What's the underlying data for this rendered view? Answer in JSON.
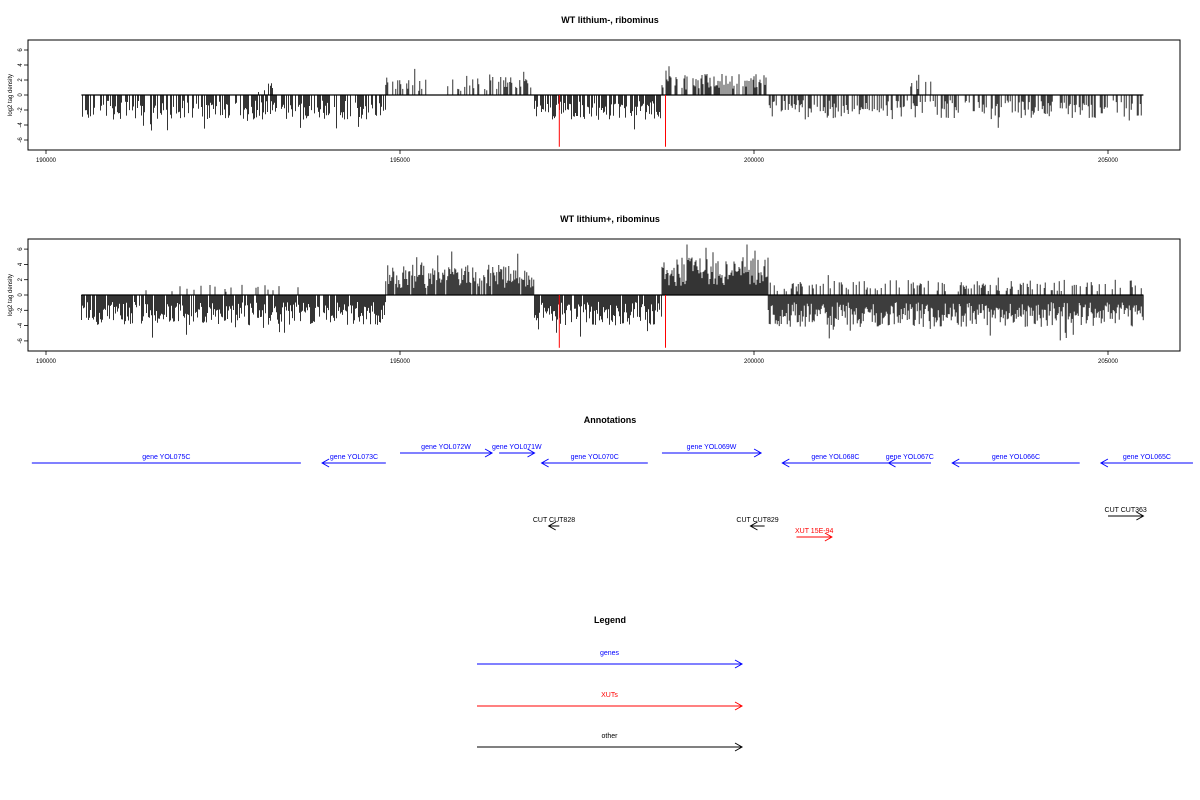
{
  "chart_data": [
    {
      "type": "bar",
      "title": "WT lithium-, ribominus",
      "ylabel": "log2 tag density",
      "xlabel": "",
      "xlim": [
        190000,
        206200
      ],
      "ylim": [
        -7,
        7
      ],
      "x_ticks": [
        190000,
        195000,
        200000,
        205000
      ],
      "y_ticks": [
        -6,
        -4,
        -2,
        0,
        2,
        4,
        6
      ],
      "grid": false,
      "bar_color": "#000000",
      "highlight_color": "#ff0000",
      "data_range": [
        190500,
        205500
      ],
      "segments": [
        {
          "start": 190500,
          "end": 194800,
          "sign": "neg",
          "mag": 3.0,
          "density": 0.6
        },
        {
          "start": 193000,
          "end": 193200,
          "sign": "pos",
          "mag": 1.5,
          "density": 0.3
        },
        {
          "start": 194800,
          "end": 196900,
          "sign": "pos",
          "mag": 2.2,
          "density": 0.35
        },
        {
          "start": 196900,
          "end": 198700,
          "sign": "neg",
          "mag": 3.0,
          "density": 0.75
        },
        {
          "start": 198700,
          "end": 200200,
          "sign": "pos",
          "mag": 2.6,
          "density": 0.6
        },
        {
          "start": 200200,
          "end": 205500,
          "sign": "neg",
          "mag": 2.8,
          "density": 0.55
        },
        {
          "start": 202200,
          "end": 202500,
          "sign": "pos",
          "mag": 1.8,
          "density": 0.3
        }
      ],
      "highlights": [
        {
          "x": 197250,
          "y": -6.9
        },
        {
          "x": 198750,
          "y": -6.9
        }
      ]
    },
    {
      "type": "bar",
      "title": "WT lithium+, ribominus",
      "ylabel": "log2 tag density",
      "xlabel": "",
      "xlim": [
        190000,
        206200
      ],
      "ylim": [
        -7,
        7
      ],
      "x_ticks": [
        190000,
        195000,
        200000,
        205000
      ],
      "y_ticks": [
        -6,
        -4,
        -2,
        0,
        2,
        4,
        6
      ],
      "grid": false,
      "bar_color": "#000000",
      "highlight_color": "#ff0000",
      "data_range": [
        190500,
        205500
      ],
      "segments": [
        {
          "start": 190500,
          "end": 194800,
          "sign": "neg",
          "mag": 3.6,
          "density": 0.9
        },
        {
          "start": 191200,
          "end": 193600,
          "sign": "pos",
          "mag": 1.2,
          "density": 0.1
        },
        {
          "start": 194800,
          "end": 196900,
          "sign": "pos",
          "mag": 3.6,
          "density": 0.9
        },
        {
          "start": 196900,
          "end": 198700,
          "sign": "neg",
          "mag": 3.6,
          "density": 0.9
        },
        {
          "start": 198700,
          "end": 200200,
          "sign": "pos",
          "mag": 4.6,
          "density": 1.0
        },
        {
          "start": 200200,
          "end": 205500,
          "sign": "neg",
          "mag": 3.8,
          "density": 1.0
        },
        {
          "start": 200200,
          "end": 205500,
          "sign": "pos",
          "mag": 1.8,
          "density": 0.35
        }
      ],
      "highlights": [
        {
          "x": 197250,
          "y": -6.9
        },
        {
          "x": 198750,
          "y": -6.9
        }
      ]
    }
  ],
  "annotations": {
    "title": "Annotations",
    "items": [
      {
        "label": "gene YOL075C",
        "x1": 189800,
        "x2": 193600,
        "dir": "none",
        "row": "lower",
        "color": "#0000ff"
      },
      {
        "label": "gene YOL073C",
        "x1": 193900,
        "x2": 194800,
        "dir": "left",
        "row": "lower",
        "color": "#0000ff"
      },
      {
        "label": "gene YOL072W",
        "x1": 195000,
        "x2": 196300,
        "dir": "right",
        "row": "upper",
        "color": "#0000ff"
      },
      {
        "label": "gene YOL071W",
        "x1": 196400,
        "x2": 196900,
        "dir": "right",
        "row": "upper",
        "color": "#0000ff"
      },
      {
        "label": "gene YOL070C",
        "x1": 197000,
        "x2": 198500,
        "dir": "left",
        "row": "lower",
        "color": "#0000ff"
      },
      {
        "label": "gene YOL069W",
        "x1": 198700,
        "x2": 200100,
        "dir": "right",
        "row": "upper",
        "color": "#0000ff"
      },
      {
        "label": "gene YOL068C",
        "x1": 200400,
        "x2": 201900,
        "dir": "left",
        "row": "lower",
        "color": "#0000ff"
      },
      {
        "label": "gene YOL067C",
        "x1": 201900,
        "x2": 202500,
        "dir": "left",
        "row": "lower",
        "color": "#0000ff"
      },
      {
        "label": "gene YOL066C",
        "x1": 202800,
        "x2": 204600,
        "dir": "left",
        "row": "lower",
        "color": "#0000ff"
      },
      {
        "label": "gene YOL065C",
        "x1": 204900,
        "x2": 206200,
        "dir": "left",
        "row": "lower",
        "color": "#0000ff"
      },
      {
        "label": "CUT CUT828",
        "x1": 197100,
        "x2": 197250,
        "dir": "left",
        "row": "cut",
        "color": "#000000"
      },
      {
        "label": "CUT CUT829",
        "x1": 199950,
        "x2": 200150,
        "dir": "left",
        "row": "cut",
        "color": "#000000"
      },
      {
        "label": "CUT CUT363",
        "x1": 205000,
        "x2": 205500,
        "dir": "right",
        "row": "cut2",
        "color": "#000000"
      },
      {
        "label": "XUT 15E-94",
        "x1": 200600,
        "x2": 201100,
        "dir": "right",
        "row": "xut",
        "color": "#ff0000"
      }
    ]
  },
  "legend": {
    "title": "Legend",
    "items": [
      {
        "label": "genes",
        "color": "#0000ff"
      },
      {
        "label": "XUTs",
        "color": "#ff0000"
      },
      {
        "label": "other",
        "color": "#000000"
      }
    ]
  }
}
